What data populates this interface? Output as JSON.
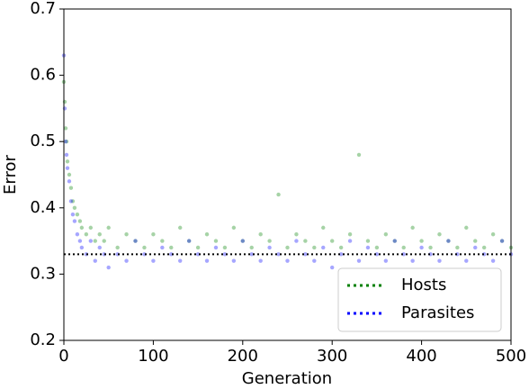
{
  "chart_data": {
    "type": "scatter",
    "xlabel": "Generation",
    "ylabel": "Error",
    "xlim": [
      0,
      500
    ],
    "ylim": [
      0.2,
      0.7
    ],
    "xticks": [
      0,
      100,
      200,
      300,
      400,
      500
    ],
    "yticks": [
      0.2,
      0.3,
      0.4,
      0.5,
      0.6,
      0.7
    ],
    "hline": {
      "value": 0.33,
      "color": "#000000"
    },
    "legend": "lower right",
    "series": [
      {
        "name": "Hosts",
        "color": "#008000",
        "x": [
          0,
          1,
          2,
          3,
          4,
          6,
          8,
          10,
          12,
          15,
          18,
          20,
          25,
          30,
          35,
          40,
          45,
          50,
          60,
          70,
          80,
          90,
          100,
          110,
          120,
          130,
          140,
          150,
          160,
          170,
          180,
          190,
          200,
          210,
          220,
          230,
          240,
          250,
          260,
          270,
          280,
          290,
          300,
          310,
          320,
          330,
          340,
          350,
          360,
          370,
          380,
          390,
          400,
          410,
          420,
          430,
          440,
          450,
          460,
          470,
          480,
          490,
          500
        ],
        "y": [
          0.59,
          0.56,
          0.52,
          0.5,
          0.47,
          0.45,
          0.43,
          0.41,
          0.4,
          0.39,
          0.38,
          0.37,
          0.36,
          0.37,
          0.35,
          0.36,
          0.35,
          0.37,
          0.34,
          0.36,
          0.35,
          0.34,
          0.36,
          0.35,
          0.34,
          0.37,
          0.35,
          0.34,
          0.36,
          0.35,
          0.34,
          0.37,
          0.35,
          0.34,
          0.36,
          0.35,
          0.42,
          0.34,
          0.36,
          0.35,
          0.34,
          0.37,
          0.35,
          0.34,
          0.36,
          0.48,
          0.35,
          0.34,
          0.36,
          0.35,
          0.34,
          0.37,
          0.35,
          0.34,
          0.36,
          0.35,
          0.34,
          0.37,
          0.35,
          0.34,
          0.36,
          0.35,
          0.34
        ]
      },
      {
        "name": "Parasites",
        "color": "#0000ff",
        "x": [
          0,
          1,
          2,
          3,
          4,
          6,
          8,
          10,
          12,
          15,
          18,
          20,
          25,
          30,
          35,
          40,
          45,
          50,
          60,
          70,
          80,
          90,
          100,
          110,
          120,
          130,
          140,
          150,
          160,
          170,
          180,
          190,
          200,
          210,
          220,
          230,
          240,
          250,
          260,
          270,
          280,
          290,
          300,
          310,
          320,
          330,
          340,
          350,
          360,
          370,
          380,
          390,
          400,
          410,
          420,
          430,
          440,
          450,
          460,
          470,
          480,
          490,
          500
        ],
        "y": [
          0.63,
          0.55,
          0.5,
          0.48,
          0.46,
          0.44,
          0.41,
          0.39,
          0.38,
          0.36,
          0.35,
          0.34,
          0.33,
          0.35,
          0.32,
          0.34,
          0.33,
          0.31,
          0.33,
          0.32,
          0.35,
          0.33,
          0.32,
          0.34,
          0.33,
          0.32,
          0.35,
          0.33,
          0.32,
          0.34,
          0.33,
          0.32,
          0.35,
          0.33,
          0.32,
          0.34,
          0.33,
          0.32,
          0.35,
          0.33,
          0.32,
          0.34,
          0.31,
          0.33,
          0.35,
          0.32,
          0.34,
          0.33,
          0.32,
          0.35,
          0.33,
          0.32,
          0.34,
          0.33,
          0.32,
          0.35,
          0.33,
          0.32,
          0.34,
          0.33,
          0.32,
          0.35,
          0.33
        ]
      }
    ]
  }
}
